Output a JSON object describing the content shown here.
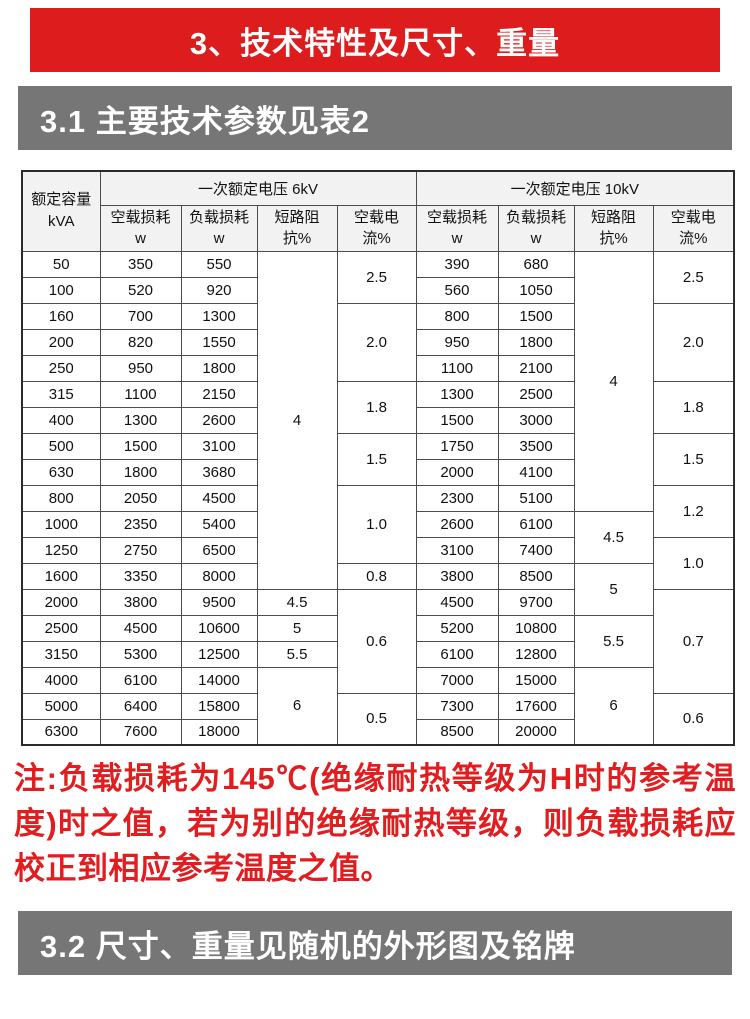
{
  "header": {
    "title": "3、技术特性及尺寸、重量"
  },
  "sections": {
    "s31_title": "3.1 主要技术参数见表2",
    "s32_title": "3.2 尺寸、重量见随机的外形图及铭牌"
  },
  "colors": {
    "accent_red": "#dd1c1e",
    "banner_gray": "#767676",
    "table_header_bg": "#f2f2f2",
    "table_border": "#4c4c4c",
    "note_red": "#e11d1f"
  },
  "table": {
    "header": {
      "capacity_l1": "额定容量",
      "capacity_l2": "kVA",
      "group6": "一次额定电压 6kV",
      "group10": "一次额定电压 10kV",
      "subs": [
        {
          "l1": "空载损耗",
          "l2": "w"
        },
        {
          "l1": "负载损耗",
          "l2": "w"
        },
        {
          "l1": "短路阻",
          "l2": "抗%"
        },
        {
          "l1": "空载电",
          "l2": "流%"
        }
      ]
    },
    "rows": [
      {
        "capacity": "50",
        "nl6": "350",
        "ll6": "550",
        "nl10": "390",
        "ll10": "680"
      },
      {
        "capacity": "100",
        "nl6": "520",
        "ll6": "920",
        "nl10": "560",
        "ll10": "1050"
      },
      {
        "capacity": "160",
        "nl6": "700",
        "ll6": "1300",
        "nl10": "800",
        "ll10": "1500"
      },
      {
        "capacity": "200",
        "nl6": "820",
        "ll6": "1550",
        "nl10": "950",
        "ll10": "1800"
      },
      {
        "capacity": "250",
        "nl6": "950",
        "ll6": "1800",
        "nl10": "1100",
        "ll10": "2100"
      },
      {
        "capacity": "315",
        "nl6": "1100",
        "ll6": "2150",
        "nl10": "1300",
        "ll10": "2500"
      },
      {
        "capacity": "400",
        "nl6": "1300",
        "ll6": "2600",
        "nl10": "1500",
        "ll10": "3000"
      },
      {
        "capacity": "500",
        "nl6": "1500",
        "ll6": "3100",
        "nl10": "1750",
        "ll10": "3500"
      },
      {
        "capacity": "630",
        "nl6": "1800",
        "ll6": "3680",
        "nl10": "2000",
        "ll10": "4100"
      },
      {
        "capacity": "800",
        "nl6": "2050",
        "ll6": "4500",
        "nl10": "2300",
        "ll10": "5100"
      },
      {
        "capacity": "1000",
        "nl6": "2350",
        "ll6": "5400",
        "nl10": "2600",
        "ll10": "6100"
      },
      {
        "capacity": "1250",
        "nl6": "2750",
        "ll6": "6500",
        "nl10": "3100",
        "ll10": "7400"
      },
      {
        "capacity": "1600",
        "nl6": "3350",
        "ll6": "8000",
        "nl10": "3800",
        "ll10": "8500"
      },
      {
        "capacity": "2000",
        "nl6": "3800",
        "ll6": "9500",
        "nl10": "4500",
        "ll10": "9700"
      },
      {
        "capacity": "2500",
        "nl6": "4500",
        "ll6": "10600",
        "nl10": "5200",
        "ll10": "10800"
      },
      {
        "capacity": "3150",
        "nl6": "5300",
        "ll6": "12500",
        "nl10": "6100",
        "ll10": "12800"
      },
      {
        "capacity": "4000",
        "nl6": "6100",
        "ll6": "14000",
        "nl10": "7000",
        "ll10": "15000"
      },
      {
        "capacity": "5000",
        "nl6": "6400",
        "ll6": "15800",
        "nl10": "7300",
        "ll10": "17600"
      },
      {
        "capacity": "6300",
        "nl6": "7600",
        "ll6": "18000",
        "nl10": "8500",
        "ll10": "20000"
      }
    ],
    "merged": {
      "impedance_6kv": [
        {
          "v": "4",
          "span": 13
        },
        {
          "v": "4.5",
          "span": 1
        },
        {
          "v": "5",
          "span": 1
        },
        {
          "v": "5.5",
          "span": 1
        },
        {
          "v": "6",
          "span": 3
        }
      ],
      "current_6kv": [
        {
          "v": "2.5",
          "span": 2
        },
        {
          "v": "2.0",
          "span": 3
        },
        {
          "v": "1.8",
          "span": 2
        },
        {
          "v": "1.5",
          "span": 2
        },
        {
          "v": "1.0",
          "span": 3
        },
        {
          "v": "0.8",
          "span": 1
        },
        {
          "v": "0.6",
          "span": 4
        },
        {
          "v": "0.5",
          "span": 2
        }
      ],
      "impedance_10kv": [
        {
          "v": "4",
          "span": 10
        },
        {
          "v": "4.5",
          "span": 2
        },
        {
          "v": "5",
          "span": 2
        },
        {
          "v": "5.5",
          "span": 2
        },
        {
          "v": "6",
          "span": 3
        }
      ],
      "current_10kv": [
        {
          "v": "2.5",
          "span": 2
        },
        {
          "v": "2.0",
          "span": 3
        },
        {
          "v": "1.8",
          "span": 2
        },
        {
          "v": "1.5",
          "span": 2
        },
        {
          "v": "1.2",
          "span": 2
        },
        {
          "v": "1.0",
          "span": 2
        },
        {
          "v": "0.7",
          "span": 4
        },
        {
          "v": "0.6",
          "span": 2
        }
      ]
    }
  },
  "note": {
    "text": "注:负载损耗为145℃(绝缘耐热等级为H时的参考温度)时之值，若为别的绝缘耐热等级，则负载损耗应校正到相应参考温度之值。"
  }
}
